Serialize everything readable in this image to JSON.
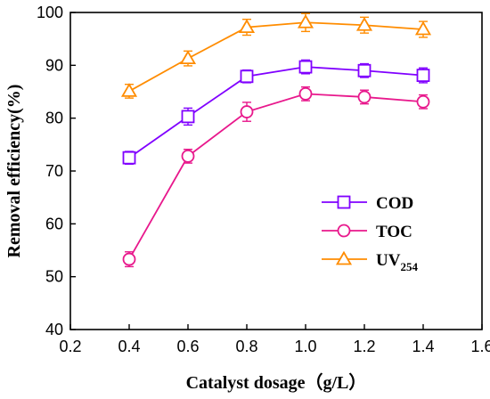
{
  "chart_data": {
    "type": "line",
    "xlabel": "Catalyst dosage（g/L）",
    "ylabel": "Removal efficiency(%)",
    "xlim": [
      0.2,
      1.6
    ],
    "ylim": [
      40,
      100
    ],
    "xticks": [
      "0.2",
      "0.4",
      "0.6",
      "0.8",
      "1.0",
      "1.2",
      "1.4",
      "1.6"
    ],
    "yticks": [
      "40",
      "50",
      "60",
      "70",
      "80",
      "90",
      "100"
    ],
    "x": [
      0.4,
      0.6,
      0.8,
      1.0,
      1.2,
      1.4
    ],
    "grid": false,
    "legend_position": "center-right",
    "series": [
      {
        "name": "COD",
        "name_main": "COD",
        "name_sub": "",
        "marker": "square",
        "color": "#8000ff",
        "values": [
          72.5,
          80.3,
          87.9,
          89.7,
          89.0,
          88.1
        ],
        "errors": [
          1.2,
          1.6,
          1.2,
          1.3,
          1.3,
          1.4
        ]
      },
      {
        "name": "TOC",
        "name_main": "TOC",
        "name_sub": "",
        "marker": "circle",
        "color": "#e8188c",
        "values": [
          53.3,
          72.8,
          81.2,
          84.6,
          84.0,
          83.1
        ],
        "errors": [
          1.4,
          1.3,
          1.8,
          1.3,
          1.3,
          1.3
        ]
      },
      {
        "name": "UV254",
        "name_main": "UV",
        "name_sub": "254",
        "marker": "triangle",
        "color": "#ff8c00",
        "values": [
          85.1,
          91.3,
          97.2,
          98.1,
          97.6,
          96.8
        ],
        "errors": [
          1.3,
          1.4,
          1.5,
          1.7,
          1.5,
          1.5
        ]
      }
    ]
  }
}
